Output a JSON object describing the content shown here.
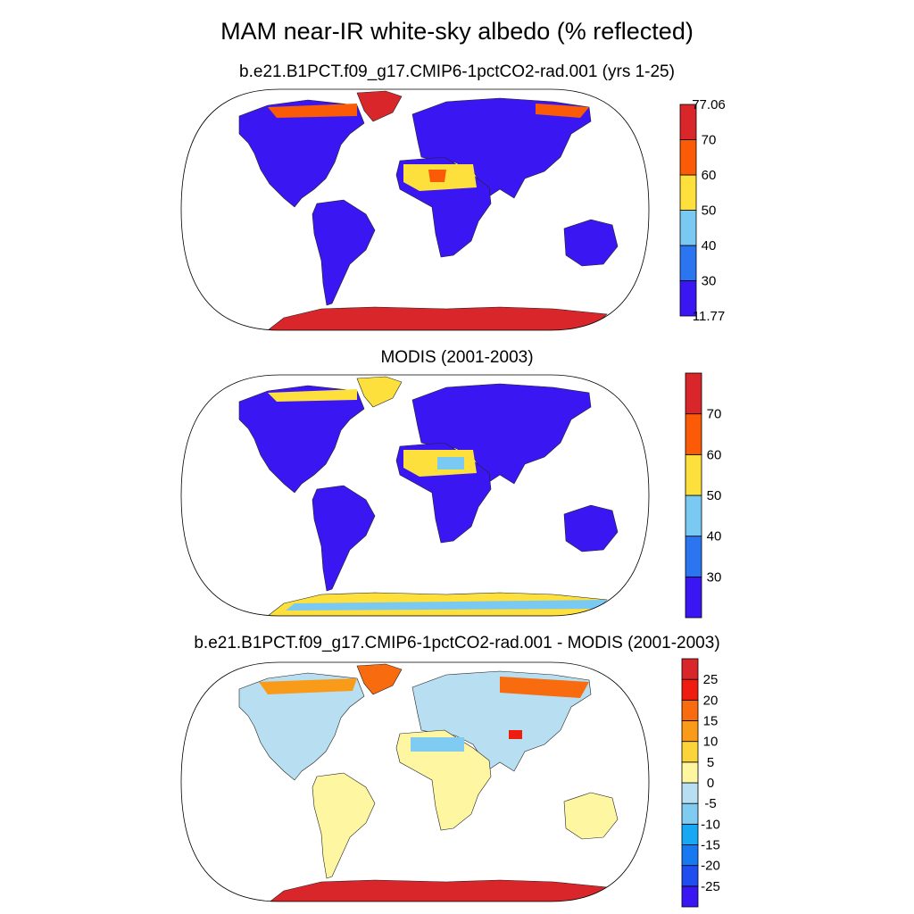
{
  "figure": {
    "title": "MAM near-IR white-sky albedo (% reflected)"
  },
  "panels": [
    {
      "title": "b.e21.B1PCT.f09_g17.CMIP6-1pctCO2-rad.001 (yrs 1-25)",
      "colorbar": {
        "colors": [
          "#3a17f2",
          "#2b76f0",
          "#7ac9f3",
          "#fde03b",
          "#fb5b07",
          "#d8262b"
        ],
        "labels": [
          "11.77",
          "30",
          "40",
          "50",
          "60",
          "70",
          "77.06"
        ]
      }
    },
    {
      "title": "MODIS (2001-2003)",
      "colorbar": {
        "colors": [
          "#3a17f2",
          "#2b76f0",
          "#7ac9f3",
          "#fde03b",
          "#fb5b07",
          "#d8262b"
        ],
        "labels": [
          "30",
          "40",
          "50",
          "60",
          "70"
        ]
      }
    },
    {
      "title": "b.e21.B1PCT.f09_g17.CMIP6-1pctCO2-rad.001 - MODIS (2001-2003)",
      "colorbar": {
        "colors": [
          "#3a17f2",
          "#1f4df0",
          "#1779f2",
          "#16a8f5",
          "#7fcbf2",
          "#b7dff1",
          "#fef6a0",
          "#fbd43a",
          "#f99a18",
          "#f86b0e",
          "#ef1c10",
          "#d8262b"
        ],
        "labels": [
          "-25",
          "-20",
          "-15",
          "-10",
          "-5",
          "0",
          "5",
          "10",
          "15",
          "20",
          "25"
        ]
      }
    }
  ]
}
